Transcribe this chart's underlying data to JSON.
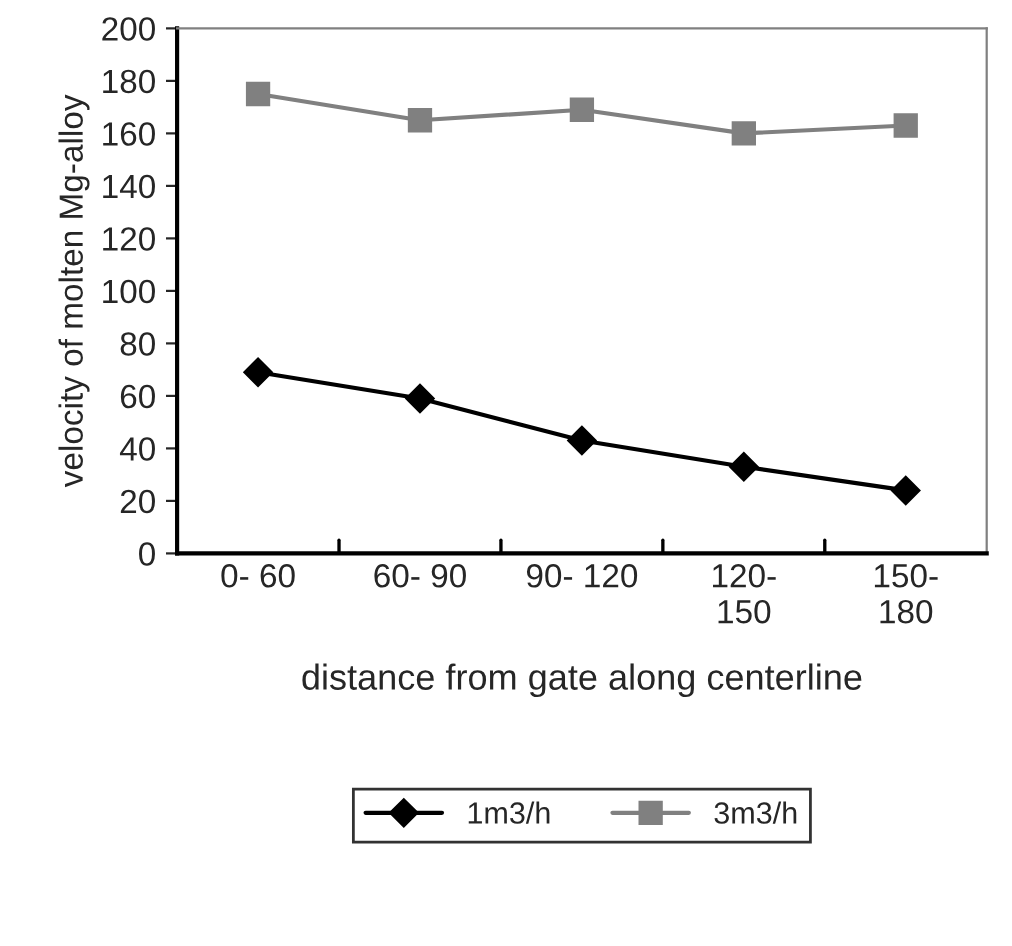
{
  "chart_data": {
    "type": "line",
    "xlabel": "distance from gate along centerline",
    "ylabel": "velocity of molten Mg-alloy",
    "categories": [
      "0- 60",
      "60- 90",
      "90- 120",
      "120-\n150",
      "150-\n180"
    ],
    "series": [
      {
        "name": "1m3/h",
        "color": "#000000",
        "values": [
          69,
          59,
          43,
          33,
          24
        ],
        "marker": "diamond"
      },
      {
        "name": "3m3/h",
        "color": "#808080",
        "values": [
          175,
          165,
          169,
          160,
          163
        ],
        "marker": "square"
      }
    ],
    "ylim": [
      0,
      200
    ],
    "yticks": [
      0,
      20,
      40,
      60,
      80,
      100,
      120,
      140,
      160,
      180,
      200
    ],
    "grid": false,
    "legend": "bottom",
    "line_style": "solid"
  }
}
